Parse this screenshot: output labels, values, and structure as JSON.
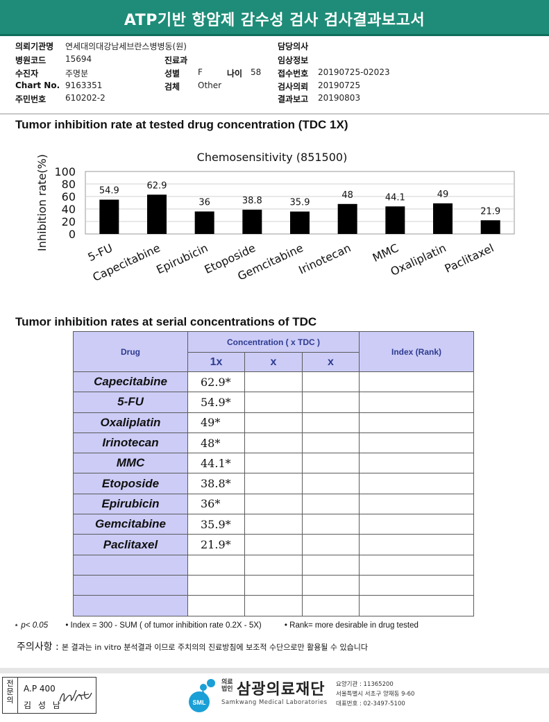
{
  "header": {
    "title": "ATP기반 항암제 감수성 검사 검사결과보고서"
  },
  "patient": {
    "institution_label": "의뢰기관명",
    "institution": "연세대의대강남세브란스병병동(원)",
    "hospital_code_label": "병원코드",
    "hospital_code": "15694",
    "examinee_label": "수진자",
    "examinee": "주명분",
    "chart_no_label": "Chart No.",
    "chart_no": "9163351",
    "id_no_label": "주민번호",
    "id_no": "610202-2",
    "department_label": "진료과",
    "department": "",
    "sex_label": "성별",
    "sex": "F",
    "age_label": "나이",
    "age": "58",
    "specimen_label": "검체",
    "specimen": "Other",
    "doctor_label": "담당의사",
    "doctor": "",
    "clinical_label": "임상정보",
    "clinical": "",
    "receipt_no_label": "접수번호",
    "receipt_no": "20190725-02023",
    "request_label": "검사의뢰",
    "request_date": "20190725",
    "report_label": "결과보고",
    "report_date": "20190803"
  },
  "section1": {
    "title": "Tumor inhibition rate at tested drug concentration (TDC 1X)"
  },
  "chart_data": {
    "type": "bar",
    "title": "Chemosensitivity (851500)",
    "ylabel": "Inhibition rate(%)",
    "xlabel": "",
    "ylim": [
      0,
      100
    ],
    "yticks": [
      "100",
      "80",
      "60",
      "40",
      "20",
      "0"
    ],
    "categories": [
      "5-FU",
      "Capecitabine",
      "Epirubicin",
      "Etoposide",
      "Gemcitabine",
      "Irinotecan",
      "MMC",
      "Oxaliplatin",
      "Paclitaxel"
    ],
    "values": [
      54.9,
      62.9,
      36,
      38.8,
      35.9,
      48,
      44.1,
      49,
      21.9
    ],
    "value_labels": [
      "54.9",
      "62.9",
      "36",
      "38.8",
      "35.9",
      "48",
      "44.1",
      "49",
      "21.9"
    ],
    "grid": true,
    "bar_color": "#000000"
  },
  "section2": {
    "title": "Tumor inhibition rates at serial concentrations of TDC"
  },
  "table": {
    "drug_header": "Drug",
    "conc_header": "Concentration ( x TDC )",
    "index_header": "Index (Rank)",
    "sub_headers": [
      "1x",
      "x",
      "x"
    ],
    "rows": [
      {
        "drug": "Capecitabine",
        "c1": "62.9*",
        "c2": "",
        "c3": "",
        "index": ""
      },
      {
        "drug": "5-FU",
        "c1": "54.9*",
        "c2": "",
        "c3": "",
        "index": ""
      },
      {
        "drug": "Oxaliplatin",
        "c1": "49*",
        "c2": "",
        "c3": "",
        "index": ""
      },
      {
        "drug": "Irinotecan",
        "c1": "48*",
        "c2": "",
        "c3": "",
        "index": ""
      },
      {
        "drug": "MMC",
        "c1": "44.1*",
        "c2": "",
        "c3": "",
        "index": ""
      },
      {
        "drug": "Etoposide",
        "c1": "38.8*",
        "c2": "",
        "c3": "",
        "index": ""
      },
      {
        "drug": "Epirubicin",
        "c1": "36*",
        "c2": "",
        "c3": "",
        "index": ""
      },
      {
        "drug": "Gemcitabine",
        "c1": "35.9*",
        "c2": "",
        "c3": "",
        "index": ""
      },
      {
        "drug": "Paclitaxel",
        "c1": "21.9*",
        "c2": "",
        "c3": "",
        "index": ""
      },
      {
        "drug": "",
        "c1": "",
        "c2": "",
        "c3": "",
        "index": ""
      },
      {
        "drug": "",
        "c1": "",
        "c2": "",
        "c3": "",
        "index": ""
      },
      {
        "drug": "",
        "c1": "",
        "c2": "",
        "c3": "",
        "index": ""
      }
    ]
  },
  "notes": {
    "p_note": "p< 0.05",
    "index_note": "Index = 300 - SUM ( of tumor inhibition rate 0.2X  -  5X)",
    "rank_note": "Rank= more desirable in drug tested"
  },
  "caution": {
    "label": "주의사항 :",
    "text": "본 결과는 in vitro 분석결과 이므로 주치의의 진료방침에 보조적 수단으로만 활용될 수 있습니다"
  },
  "footer": {
    "stamp_vertical": "전문의",
    "stamp_line1": "A.P 400",
    "stamp_line2": "김 성 남",
    "org_prefix": "의료법인",
    "org_name": "삼광의료재단",
    "org_english": "Samkwang Medical Laboratories",
    "logo_text": "SML",
    "contact1": "요양기관 : 11365200",
    "contact2": "서울특별시 서초구 양재동 9-60",
    "contact3": "대표번호 : 02-3497-5100"
  },
  "colors": {
    "title_bar": "#1e8c78",
    "table_header": "#ccccf7",
    "logo_blue": "#1a9fd6"
  }
}
